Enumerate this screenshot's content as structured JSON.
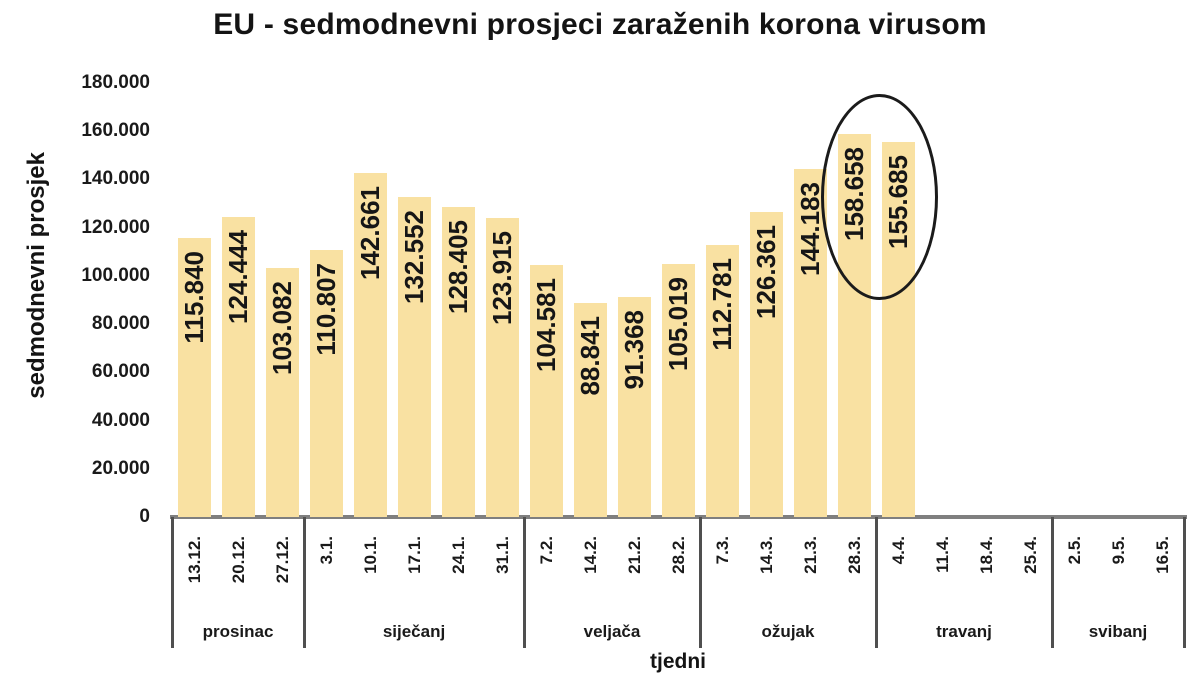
{
  "chart_data": {
    "type": "bar",
    "title": "EU - sedmodnevni prosjeci zaraženih korona virusom",
    "xlabel": "tjedni",
    "ylabel": "sedmodnevni prosjek",
    "ylim": [
      0,
      180000
    ],
    "grid": false,
    "legend": false,
    "yticks": [
      "0",
      "20.000",
      "40.000",
      "60.000",
      "80.000",
      "100.000",
      "120.000",
      "140.000",
      "160.000",
      "180.000"
    ],
    "categories": [
      "13.12.",
      "20.12.",
      "27.12.",
      "3.1.",
      "10.1.",
      "17.1.",
      "24.1.",
      "31.1.",
      "7.2.",
      "14.2.",
      "21.2.",
      "28.2.",
      "7.3.",
      "14.3.",
      "21.3.",
      "28.3.",
      "4.4.",
      "11.4.",
      "18.4.",
      "25.4.",
      "2.5.",
      "9.5.",
      "16.5."
    ],
    "values": [
      115840,
      124444,
      103082,
      110807,
      142661,
      132552,
      128405,
      123915,
      104581,
      88841,
      91368,
      105019,
      112781,
      126361,
      144183,
      158658,
      155685,
      null,
      null,
      null,
      null,
      null,
      null
    ],
    "value_labels": [
      "115.840",
      "124.444",
      "103.082",
      "110.807",
      "142.661",
      "132.552",
      "128.405",
      "123.915",
      "104.581",
      "88.841",
      "91.368",
      "105.019",
      "112.781",
      "126.361",
      "144.183",
      "158.658",
      "155.685",
      "",
      "",
      "",
      "",
      "",
      ""
    ],
    "month_groups": [
      {
        "label": "prosinac",
        "span": 3
      },
      {
        "label": "siječanj",
        "span": 5
      },
      {
        "label": "veljača",
        "span": 4
      },
      {
        "label": "ožujak",
        "span": 4
      },
      {
        "label": "travanj",
        "span": 4
      },
      {
        "label": "svibanj",
        "span": 3
      }
    ],
    "annotation": {
      "shape": "ellipse",
      "around": [
        "28.3.",
        "4.4."
      ]
    },
    "colors": {
      "bar": "#F9E1A2",
      "text": "#1a1a1a",
      "axis_line": "#7f7f7f",
      "separator": "#4f4f4f",
      "ellipse": "#1b1b1b"
    }
  }
}
